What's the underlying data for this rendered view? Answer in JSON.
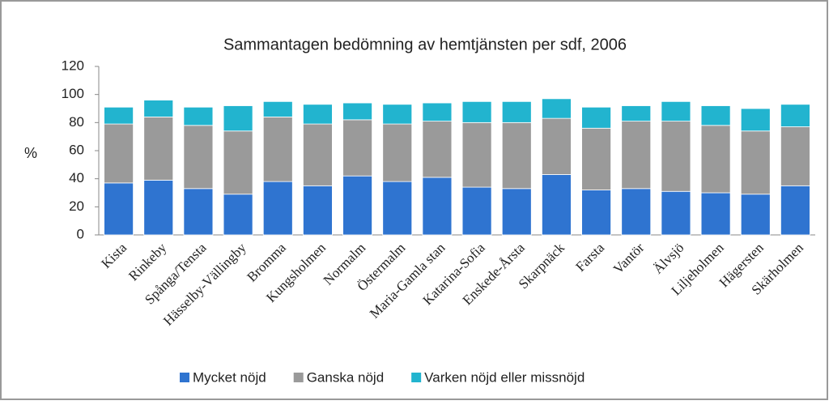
{
  "chart_data": {
    "type": "stacked_bar",
    "title": "Sammantagen bedömning av hemtjänsten per sdf, 2006",
    "y_label": "%",
    "categories": [
      "Kista",
      "Rinkeby",
      "Spånga/Tensta",
      "Hässelby-Vällingby",
      "Bromma",
      "Kungsholmen",
      "Normalm",
      "Östermalm",
      "Maria-Gamla stan",
      "Katarina-Sofia",
      "Enskede-Årsta",
      "Skarpnäck",
      "Farsta",
      "Vantör",
      "Älvsjö",
      "Liljeholmen",
      "Hägersten",
      "Skärholmen"
    ],
    "series": [
      {
        "name": "Mycket nöjd",
        "color": "#2f74d0",
        "values": [
          37,
          39,
          33,
          29,
          38,
          35,
          42,
          38,
          41,
          34,
          33,
          43,
          32,
          33,
          31,
          30,
          29,
          35
        ]
      },
      {
        "name": "Ganska nöjd",
        "color": "#9a9a9a",
        "values": [
          42,
          45,
          45,
          45,
          46,
          44,
          40,
          41,
          40,
          46,
          47,
          40,
          44,
          48,
          50,
          48,
          45,
          42
        ]
      },
      {
        "name": "Varken nöjd eller missnöjd",
        "color": "#22b4cf",
        "values": [
          12,
          12,
          13,
          18,
          11,
          14,
          12,
          14,
          13,
          15,
          15,
          14,
          15,
          11,
          14,
          14,
          16,
          16
        ]
      }
    ],
    "ylim": [
      0,
      120
    ],
    "yticks": [
      0,
      20,
      40,
      60,
      80,
      100,
      120
    ],
    "grid": false
  }
}
